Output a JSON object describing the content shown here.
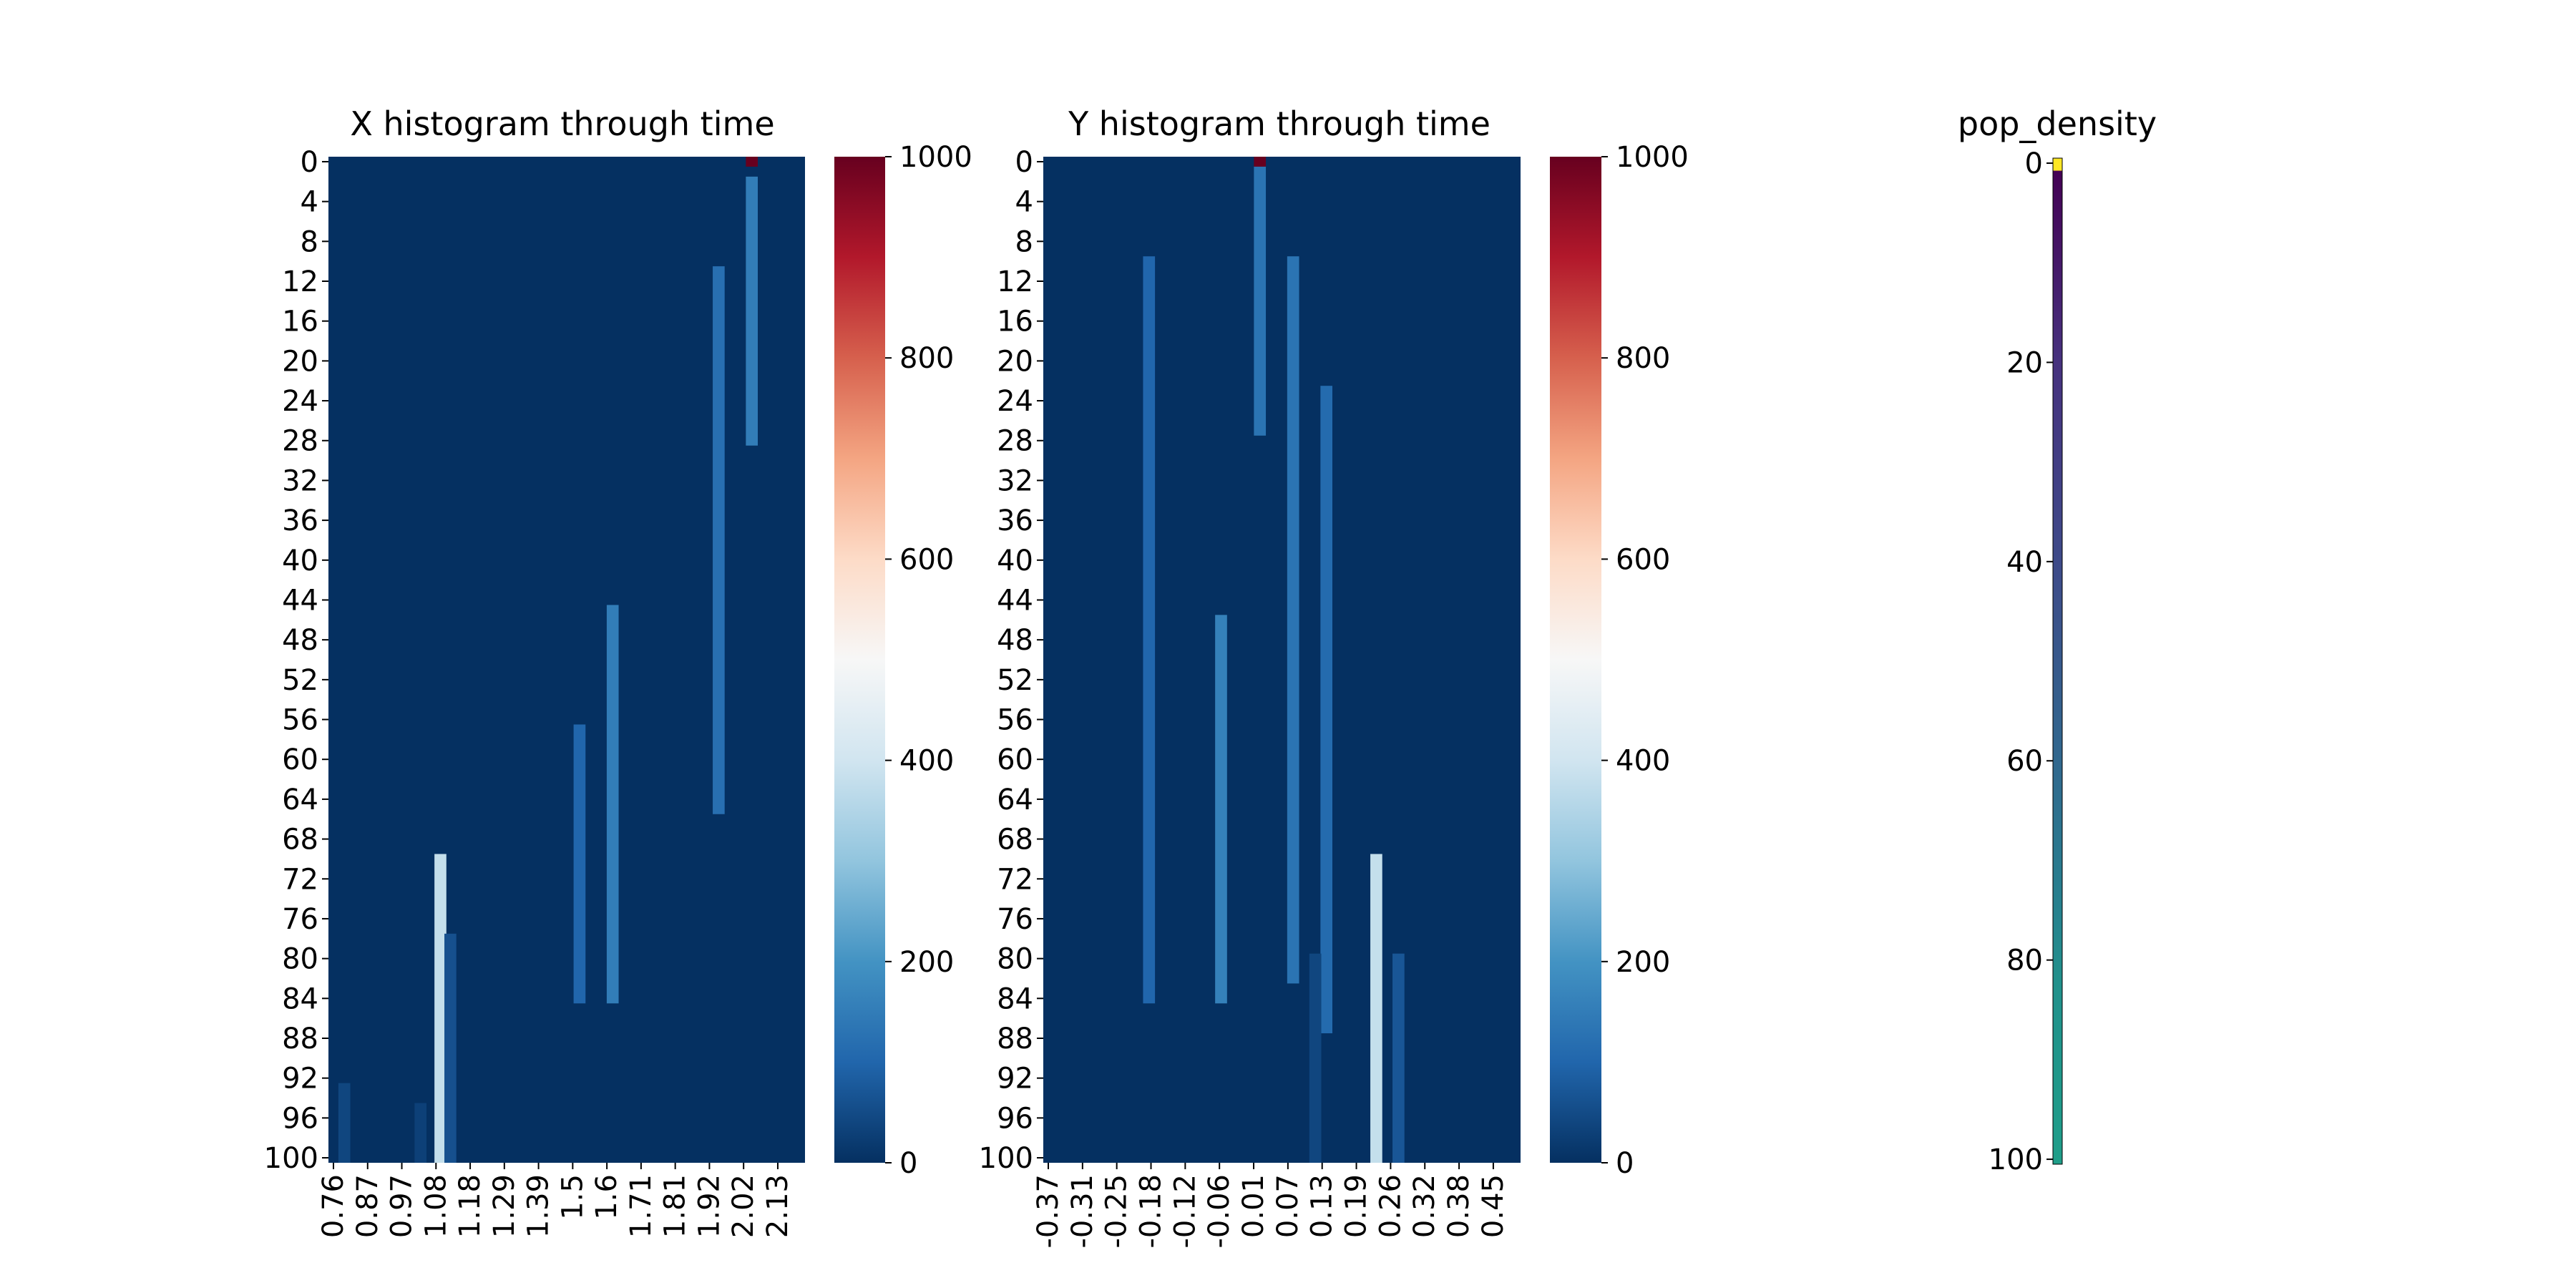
{
  "chart_data": [
    {
      "type": "heatmap",
      "title": "X histogram through time",
      "xlabel": "",
      "ylabel": "",
      "colormap": "RdBu_r",
      "vmin": 0,
      "vmax": 1000,
      "x_tick_labels": [
        "0.76",
        "0.87",
        "0.97",
        "1.08",
        "1.18",
        "1.29",
        "1.39",
        "1.5",
        "1.6",
        "1.71",
        "1.81",
        "1.92",
        "2.02",
        "2.13"
      ],
      "y_tick_labels": [
        "0",
        "4",
        "8",
        "12",
        "16",
        "20",
        "24",
        "28",
        "32",
        "36",
        "40",
        "44",
        "48",
        "52",
        "56",
        "60",
        "64",
        "68",
        "72",
        "76",
        "80",
        "84",
        "88",
        "92",
        "96",
        "100"
      ],
      "colorbar_tick_labels": [
        "0",
        "200",
        "400",
        "600",
        "800",
        "1000"
      ],
      "bands": [
        {
          "x": 2.02,
          "t_start": 0,
          "t_end": 0,
          "value": 1000
        },
        {
          "x": 2.02,
          "t_start": 2,
          "t_end": 28,
          "value": 150
        },
        {
          "x": 1.92,
          "t_start": 11,
          "t_end": 65,
          "value": 120
        },
        {
          "x": 1.6,
          "t_start": 45,
          "t_end": 84,
          "value": 150
        },
        {
          "x": 1.5,
          "t_start": 57,
          "t_end": 84,
          "value": 100
        },
        {
          "x": 1.08,
          "t_start": 70,
          "t_end": 100,
          "value": 380
        },
        {
          "x": 1.11,
          "t_start": 78,
          "t_end": 100,
          "value": 60
        },
        {
          "x": 0.79,
          "t_start": 93,
          "t_end": 100,
          "value": 40
        },
        {
          "x": 1.02,
          "t_start": 95,
          "t_end": 100,
          "value": 30
        }
      ]
    },
    {
      "type": "heatmap",
      "title": "Y histogram through time",
      "xlabel": "",
      "ylabel": "",
      "colormap": "RdBu_r",
      "vmin": 0,
      "vmax": 1000,
      "x_tick_labels": [
        "-0.37",
        "-0.31",
        "-0.25",
        "-0.18",
        "-0.12",
        "-0.06",
        "0.01",
        "0.07",
        "0.13",
        "0.19",
        "0.26",
        "0.32",
        "0.38",
        "0.45"
      ],
      "y_tick_labels": [
        "0",
        "4",
        "8",
        "12",
        "16",
        "20",
        "24",
        "28",
        "32",
        "36",
        "40",
        "44",
        "48",
        "52",
        "56",
        "60",
        "64",
        "68",
        "72",
        "76",
        "80",
        "84",
        "88",
        "92",
        "96",
        "100"
      ],
      "colorbar_tick_labels": [
        "0",
        "200",
        "400",
        "600",
        "800",
        "1000"
      ],
      "bands": [
        {
          "x": 0.01,
          "t_start": 0,
          "t_end": 0,
          "value": 1000
        },
        {
          "x": 0.01,
          "t_start": 1,
          "t_end": 27,
          "value": 130
        },
        {
          "x": 0.07,
          "t_start": 10,
          "t_end": 82,
          "value": 130
        },
        {
          "x": 0.13,
          "t_start": 23,
          "t_end": 87,
          "value": 110
        },
        {
          "x": -0.06,
          "t_start": 46,
          "t_end": 84,
          "value": 160
        },
        {
          "x": -0.19,
          "t_start": 10,
          "t_end": 84,
          "value": 100
        },
        {
          "x": 0.22,
          "t_start": 70,
          "t_end": 100,
          "value": 380
        },
        {
          "x": 0.26,
          "t_start": 80,
          "t_end": 100,
          "value": 70
        },
        {
          "x": 0.11,
          "t_start": 80,
          "t_end": 100,
          "value": 40
        }
      ]
    },
    {
      "type": "heatmap",
      "title": "pop_density",
      "xlabel": "",
      "ylabel": "",
      "colormap": "viridis",
      "y_tick_labels": [
        "0",
        "20",
        "40",
        "60",
        "80",
        "100"
      ],
      "values_by_time": [
        {
          "t": 0,
          "level": 1.0
        },
        {
          "t": 1,
          "level": 0.02
        },
        {
          "t": 20,
          "level": 0.1
        },
        {
          "t": 40,
          "level": 0.2
        },
        {
          "t": 60,
          "level": 0.33
        },
        {
          "t": 75,
          "level": 0.4
        },
        {
          "t": 80,
          "level": 0.5
        },
        {
          "t": 100,
          "level": 0.55
        }
      ]
    }
  ]
}
